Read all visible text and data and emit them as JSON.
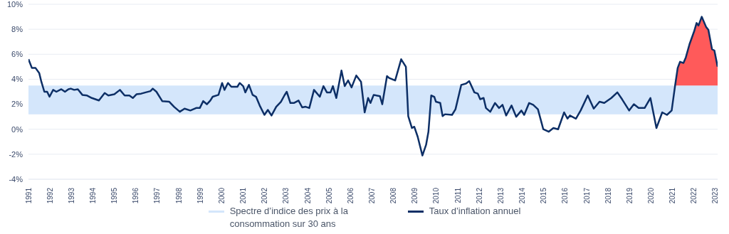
{
  "chart_data": {
    "type": "line",
    "xlim": [
      1991,
      2023.1
    ],
    "xticks": [
      1991,
      1992,
      1993,
      1994,
      1995,
      1996,
      1997,
      1998,
      1999,
      2000,
      2001,
      2002,
      2003,
      2004,
      2005,
      2006,
      2007,
      2008,
      2009,
      2010,
      2011,
      2012,
      2013,
      2014,
      2015,
      2016,
      2017,
      2018,
      2019,
      2020,
      2021,
      2022,
      2023
    ],
    "ylim": [
      -4,
      10
    ],
    "yticks": [
      {
        "value": -4,
        "label": "-4%"
      },
      {
        "value": -2,
        "label": "-2%"
      },
      {
        "value": 0,
        "label": "0%"
      },
      {
        "value": 2,
        "label": "2%"
      },
      {
        "value": 4,
        "label": "4%"
      },
      {
        "value": 6,
        "label": "6%"
      },
      {
        "value": 8,
        "label": "8%"
      },
      {
        "value": 10,
        "label": "10%"
      }
    ],
    "grid": "y",
    "legend": "bottom",
    "bands": [
      {
        "axis": "y",
        "from": 1.2,
        "to": 3.5,
        "label": "Spectre d’indice des prix à la consommation sur 30 ans",
        "color": "#d4e6fb"
      }
    ],
    "series": [
      {
        "type": "line",
        "name": "Taux d’inflation annuel",
        "color": "#0d2f66",
        "x": [
          1991.0,
          1991.16,
          1991.33,
          1991.5,
          1991.6,
          1991.74,
          1991.87,
          1991.98,
          1992.15,
          1992.3,
          1992.53,
          1992.7,
          1992.86,
          1992.97,
          1993.13,
          1993.3,
          1993.51,
          1993.73,
          1993.95,
          1994.28,
          1994.55,
          1994.72,
          1995.0,
          1995.26,
          1995.48,
          1995.7,
          1995.86,
          1996.03,
          1996.25,
          1996.46,
          1996.68,
          1996.79,
          1996.96,
          1997.23,
          1997.56,
          1997.78,
          1998.05,
          1998.27,
          1998.54,
          1998.81,
          1998.98,
          1999.14,
          1999.31,
          1999.47,
          1999.58,
          1999.85,
          2000.02,
          2000.13,
          2000.29,
          2000.45,
          2000.73,
          2000.84,
          2001.0,
          2001.1,
          2001.27,
          2001.44,
          2001.6,
          2001.77,
          2001.99,
          2002.15,
          2002.32,
          2002.54,
          2002.76,
          2002.92,
          2003.03,
          2003.2,
          2003.36,
          2003.58,
          2003.75,
          2003.91,
          2004.08,
          2004.3,
          2004.57,
          2004.74,
          2004.9,
          2005.07,
          2005.18,
          2005.34,
          2005.58,
          2005.73,
          2005.89,
          2006.05,
          2006.27,
          2006.49,
          2006.66,
          2006.82,
          2006.93,
          2007.08,
          2007.21,
          2007.37,
          2007.48,
          2007.7,
          2007.8,
          2008.08,
          2008.36,
          2008.58,
          2008.69,
          2008.86,
          2008.97,
          2009.13,
          2009.24,
          2009.35,
          2009.52,
          2009.63,
          2009.76,
          2009.9,
          2009.98,
          2010.18,
          2010.29,
          2010.4,
          2010.73,
          2010.89,
          2011.16,
          2011.38,
          2011.53,
          2011.77,
          2011.93,
          2012.04,
          2012.2,
          2012.31,
          2012.51,
          2012.73,
          2012.92,
          2013.08,
          2013.25,
          2013.5,
          2013.72,
          2013.96,
          2014.09,
          2014.32,
          2014.51,
          2014.73,
          2014.98,
          2015.23,
          2015.45,
          2015.67,
          2015.95,
          2016.11,
          2016.22,
          2016.5,
          2016.72,
          2017.05,
          2017.33,
          2017.6,
          2017.82,
          2018.15,
          2018.43,
          2018.65,
          2018.98,
          2019.2,
          2019.42,
          2019.7,
          2019.97,
          2020.25,
          2020.52,
          2020.74,
          2020.96,
          2021.1,
          2021.12,
          2021.24,
          2021.35,
          2021.51,
          2021.62,
          2021.79,
          2022.01,
          2022.12,
          2022.21,
          2022.36,
          2022.56,
          2022.67,
          2022.84,
          2022.95,
          2023.1
        ],
        "values": [
          5.6,
          4.9,
          4.9,
          4.5,
          3.8,
          3.0,
          3.0,
          2.6,
          3.15,
          3.0,
          3.2,
          3.0,
          3.2,
          3.25,
          3.15,
          3.2,
          2.75,
          2.7,
          2.5,
          2.3,
          2.9,
          2.7,
          2.8,
          3.15,
          2.7,
          2.7,
          2.5,
          2.8,
          2.85,
          2.95,
          3.05,
          3.25,
          3.0,
          2.25,
          2.2,
          1.8,
          1.4,
          1.65,
          1.5,
          1.7,
          1.7,
          2.25,
          2.0,
          2.3,
          2.6,
          2.75,
          3.7,
          3.15,
          3.7,
          3.4,
          3.4,
          3.7,
          3.45,
          2.95,
          3.55,
          2.75,
          2.6,
          1.9,
          1.15,
          1.55,
          1.1,
          1.8,
          2.2,
          2.7,
          3.0,
          2.1,
          2.1,
          2.3,
          1.75,
          1.8,
          1.7,
          3.15,
          2.6,
          3.45,
          2.95,
          2.95,
          3.45,
          2.5,
          4.7,
          3.45,
          3.9,
          3.35,
          4.3,
          3.8,
          1.35,
          2.5,
          2.1,
          2.75,
          2.7,
          2.65,
          2.0,
          4.25,
          4.1,
          3.9,
          5.6,
          5.0,
          1.05,
          0.1,
          0.2,
          -0.6,
          -1.35,
          -2.1,
          -1.25,
          -0.2,
          2.7,
          2.6,
          2.2,
          2.1,
          1.05,
          1.2,
          1.15,
          1.6,
          3.55,
          3.65,
          3.85,
          2.95,
          2.85,
          2.4,
          2.5,
          1.7,
          1.4,
          2.1,
          1.7,
          1.95,
          1.1,
          1.9,
          1.0,
          1.5,
          1.15,
          2.1,
          1.95,
          1.6,
          0.0,
          -0.2,
          0.1,
          0.0,
          1.35,
          0.85,
          1.1,
          0.85,
          1.5,
          2.7,
          1.65,
          2.2,
          2.1,
          2.5,
          2.95,
          2.4,
          1.5,
          2.0,
          1.7,
          1.7,
          2.5,
          0.1,
          1.35,
          1.15,
          1.5,
          3.25,
          3.5,
          4.9,
          5.4,
          5.3,
          5.75,
          6.8,
          7.85,
          8.5,
          8.3,
          9.0,
          8.2,
          7.95,
          6.4,
          6.3,
          5.0
        ],
        "lower": [
          null,
          null,
          null,
          null,
          null,
          null,
          null,
          null,
          null,
          null,
          null,
          null,
          null,
          null,
          null,
          null,
          null,
          null,
          null,
          null,
          null,
          null,
          null,
          null,
          null,
          null,
          null,
          null,
          null,
          null,
          null,
          null,
          null,
          null,
          null,
          null,
          null,
          null,
          null,
          null,
          null,
          null,
          null,
          null,
          null,
          null,
          null,
          null,
          null,
          null,
          null,
          null,
          null,
          null,
          null,
          null,
          null,
          null,
          null,
          null,
          null,
          null,
          null,
          null,
          null,
          null,
          null,
          null,
          null,
          null,
          null,
          null,
          null,
          null,
          null,
          null,
          null,
          null,
          null,
          null,
          null,
          null,
          null,
          null,
          null,
          null,
          null,
          null,
          null,
          null,
          null,
          null,
          null,
          null,
          null,
          null,
          null,
          null,
          null,
          null,
          null,
          null,
          null,
          null,
          null,
          null,
          null,
          null,
          null,
          null,
          null,
          null,
          null,
          null,
          null,
          null,
          null,
          null,
          null,
          null,
          null,
          null,
          null,
          null,
          null,
          null,
          null,
          null,
          null,
          null,
          null,
          null,
          null,
          null,
          null,
          null,
          null,
          null,
          null,
          null,
          null,
          null,
          null,
          null,
          null,
          null,
          null,
          null,
          null,
          null,
          null,
          null,
          null,
          null,
          null,
          null,
          null,
          null,
          3.5,
          3.5,
          3.5,
          3.5,
          3.5,
          3.5,
          3.5,
          3.5,
          3.5,
          3.5,
          3.5,
          3.5,
          3.5,
          3.5,
          3.5
        ],
        "upper": [
          null,
          null,
          null,
          null,
          null,
          null,
          null,
          null,
          null,
          null,
          null,
          null,
          null,
          null,
          null,
          null,
          null,
          null,
          null,
          null,
          null,
          null,
          null,
          null,
          null,
          null,
          null,
          null,
          null,
          null,
          null,
          null,
          null,
          null,
          null,
          null,
          null,
          null,
          null,
          null,
          null,
          null,
          null,
          null,
          null,
          null,
          null,
          null,
          null,
          null,
          null,
          null,
          null,
          null,
          null,
          null,
          null,
          null,
          null,
          null,
          null,
          null,
          null,
          null,
          null,
          null,
          null,
          null,
          null,
          null,
          null,
          null,
          null,
          null,
          null,
          null,
          null,
          null,
          null,
          null,
          null,
          null,
          null,
          null,
          null,
          null,
          null,
          null,
          null,
          null,
          null,
          null,
          null,
          null,
          null,
          null,
          null,
          null,
          null,
          null,
          null,
          null,
          null,
          null,
          null,
          null,
          null,
          null,
          null,
          null,
          null,
          null,
          null,
          null,
          null,
          null,
          null,
          null,
          null,
          null,
          null,
          null,
          null,
          null,
          null,
          null,
          null,
          null,
          null,
          null,
          null,
          null,
          null,
          null,
          null,
          null,
          null,
          null,
          null,
          null,
          null,
          null,
          null,
          null,
          null,
          null,
          null,
          null,
          null,
          null,
          null,
          null,
          null,
          null,
          null,
          null,
          null,
          null,
          3.5,
          4.9,
          5.4,
          5.3,
          5.75,
          6.8,
          7.85,
          8.5,
          8.3,
          9.0,
          8.2,
          7.95,
          6.4,
          6.3,
          5.0
        ]
      }
    ]
  }
}
